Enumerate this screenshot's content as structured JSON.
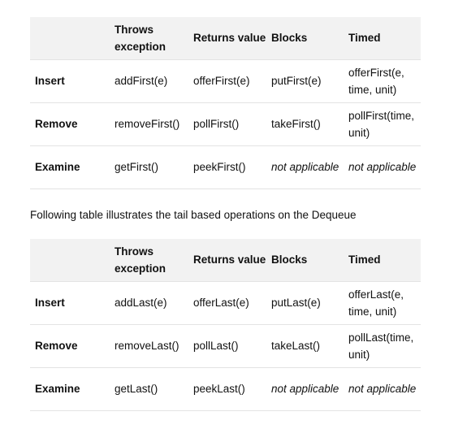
{
  "head_table": {
    "headers": [
      "",
      "Throws exception",
      "Returns value",
      "Blocks",
      "Timed"
    ],
    "rows": [
      [
        "Insert",
        "addFirst(e)",
        "offerFirst(e)",
        "putFirst(e)",
        "offerFirst(e, time, unit)"
      ],
      [
        "Remove",
        "removeFirst()",
        "pollFirst()",
        "takeFirst()",
        "pollFirst(time, unit)"
      ],
      [
        "Examine",
        "getFirst()",
        "peekFirst()",
        "not applicable",
        "not applicable"
      ]
    ]
  },
  "caption": "Following table illustrates the tail based operations on the Dequeue",
  "tail_table": {
    "headers": [
      "",
      "Throws exception",
      "Returns value",
      "Blocks",
      "Timed"
    ],
    "rows": [
      [
        "Insert",
        "addLast(e)",
        "offerLast(e)",
        "putLast(e)",
        "offerLast(e, time, unit)"
      ],
      [
        "Remove",
        "removeLast()",
        "pollLast()",
        "takeLast()",
        "pollLast(time, unit)"
      ],
      [
        "Examine",
        "getLast()",
        "peekLast()",
        "not applicable",
        "not applicable"
      ]
    ]
  }
}
